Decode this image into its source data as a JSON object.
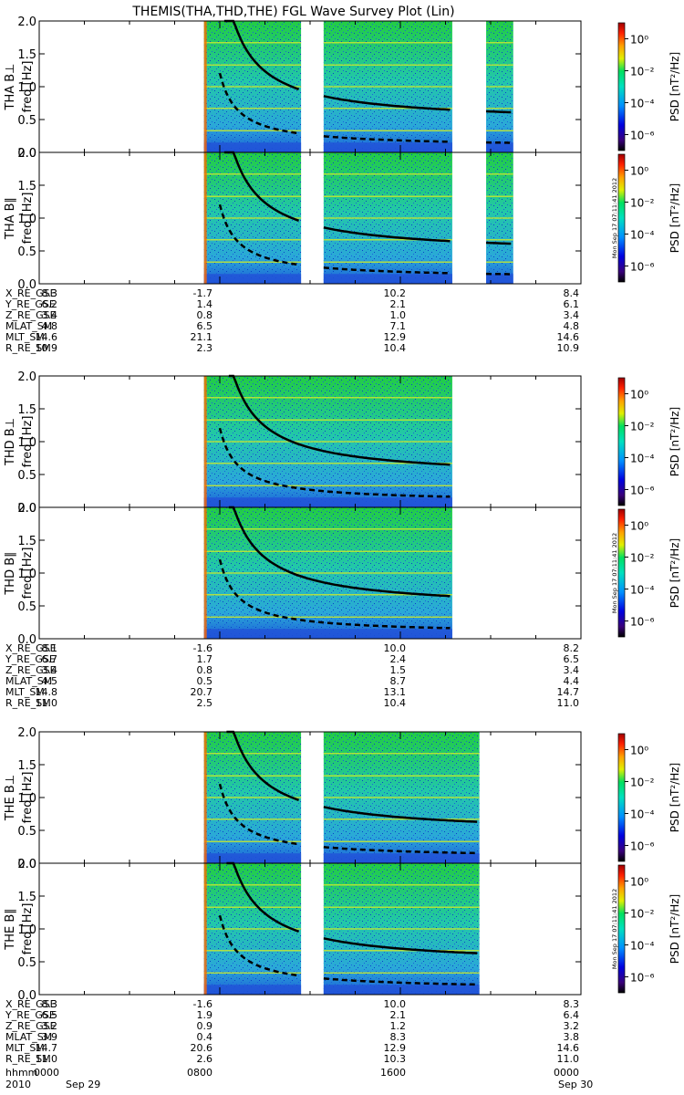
{
  "title": "THEMIS(THA,THD,THE) FGL Wave Survey Plot (Lin)",
  "stamp": "Mon Sep 17 07:11:41 2012",
  "colorbar": {
    "label": "PSD [nT²/Hz]",
    "ticks": [
      "10⁰",
      "10⁻²",
      "10⁻⁴",
      "10⁻⁶"
    ],
    "tick_exponents": [
      0,
      -2,
      -4,
      -6
    ],
    "range_log10": [
      -7,
      1
    ]
  },
  "chart_data": [
    {
      "type": "heatmap",
      "probe": "THA",
      "panels": [
        {
          "ylabel_1": "THA B⊥",
          "ylabel_2": "freq [Hz]",
          "ylim": [
            0,
            2
          ],
          "yticks": [
            "0.0",
            "0.5",
            "1.0",
            "1.5",
            "2.0"
          ],
          "stamp": false
        },
        {
          "ylabel_1": "THA B∥",
          "ylabel_2": "freq [Hz]",
          "ylim": [
            0,
            2
          ],
          "yticks": [
            "0.0",
            "0.5",
            "1.0",
            "1.5",
            "2.0"
          ],
          "stamp": true
        }
      ],
      "data_intervals_hours": [
        [
          7.3,
          11.6
        ],
        [
          12.6,
          18.3
        ],
        [
          19.8,
          21.0
        ]
      ],
      "gyro_line_hours": {
        "solid": [
          [
            8.2,
            11.5
          ],
          [
            12.6,
            18.3
          ],
          [
            19.8,
            21.0
          ]
        ],
        "dashed": [
          [
            8.0,
            11.5
          ],
          [
            12.6,
            18.3
          ],
          [
            19.8,
            21.0
          ]
        ]
      },
      "ephemeris": {
        "labels": [
          "X_RE_GSE",
          "Y_RE_GSE",
          "Z_RE_GSE",
          "MLAT_SM",
          "MLT_SM",
          "R_RE_SM"
        ],
        "columns": [
          [
            "8.3",
            "6.2",
            "3.4",
            "4.8",
            "14.6",
            "10.9"
          ],
          [
            "-1.7",
            "1.4",
            "0.8",
            "6.5",
            "21.1",
            "2.3"
          ],
          [
            "10.2",
            "2.1",
            "1.0",
            "7.1",
            "12.9",
            "10.4"
          ],
          [
            "8.4",
            "6.1",
            "3.4",
            "4.8",
            "14.6",
            "10.9"
          ]
        ]
      }
    },
    {
      "type": "heatmap",
      "probe": "THD",
      "panels": [
        {
          "ylabel_1": "THD B⊥",
          "ylabel_2": "freq [Hz]",
          "ylim": [
            0,
            2
          ],
          "yticks": [
            "0.0",
            "0.5",
            "1.0",
            "1.5",
            "2.0"
          ],
          "stamp": false
        },
        {
          "ylabel_1": "THD B∥",
          "ylabel_2": "freq [Hz]",
          "ylim": [
            0,
            2
          ],
          "yticks": [
            "0.0",
            "0.5",
            "1.0",
            "1.5",
            "2.0"
          ],
          "stamp": true
        }
      ],
      "data_intervals_hours": [
        [
          7.3,
          18.3
        ]
      ],
      "gyro_line_hours": {
        "solid": [
          [
            8.4,
            18.3
          ]
        ],
        "dashed": [
          [
            8.0,
            18.3
          ]
        ]
      },
      "ephemeris": {
        "labels": [
          "X_RE_GSE",
          "Y_RE_GSE",
          "Z_RE_GSE",
          "MLAT_SM",
          "MLT_SM",
          "R_RE_SM"
        ],
        "columns": [
          [
            "8.1",
            "6.7",
            "3.4",
            "4.5",
            "14.8",
            "11.0"
          ],
          [
            "-1.6",
            "1.7",
            "0.8",
            "0.5",
            "20.7",
            "2.5"
          ],
          [
            "10.0",
            "2.4",
            "1.5",
            "8.7",
            "13.1",
            "10.4"
          ],
          [
            "8.2",
            "6.5",
            "3.4",
            "4.4",
            "14.7",
            "11.0"
          ]
        ]
      }
    },
    {
      "type": "heatmap",
      "probe": "THE",
      "panels": [
        {
          "ylabel_1": "THE B⊥",
          "ylabel_2": "freq [Hz]",
          "ylim": [
            0,
            2
          ],
          "yticks": [
            "0.0",
            "0.5",
            "1.0",
            "1.5",
            "2.0"
          ],
          "stamp": false
        },
        {
          "ylabel_1": "THE B∥",
          "ylabel_2": "freq [Hz]",
          "ylim": [
            0,
            2
          ],
          "yticks": [
            "0.0",
            "0.5",
            "1.0",
            "1.5",
            "2.0"
          ],
          "stamp": true
        }
      ],
      "data_intervals_hours": [
        [
          7.3,
          11.6
        ],
        [
          12.6,
          19.5
        ]
      ],
      "gyro_line_hours": {
        "solid": [
          [
            8.3,
            11.5
          ],
          [
            12.6,
            19.5
          ]
        ],
        "dashed": [
          [
            8.0,
            11.5
          ],
          [
            12.6,
            19.5
          ]
        ]
      },
      "ephemeris": {
        "labels": [
          "X_RE_GSE",
          "Y_RE_GSE",
          "Z_RE_GSE",
          "MLAT_SM",
          "MLT_SM",
          "R_RE_SM"
        ],
        "columns": [
          [
            "8.3",
            "6.5",
            "3.2",
            "3.9",
            "14.7",
            "11.0"
          ],
          [
            "-1.6",
            "1.9",
            "0.9",
            "0.4",
            "20.6",
            "2.6"
          ],
          [
            "10.0",
            "2.1",
            "1.2",
            "8.3",
            "12.9",
            "10.3"
          ],
          [
            "8.3",
            "6.4",
            "3.2",
            "3.8",
            "14.6",
            "11.0"
          ]
        ]
      }
    }
  ],
  "time_axis": {
    "range_hours": [
      0,
      24
    ],
    "hhmm_label": "hhmm",
    "hhmm_values": [
      "0000",
      "0800",
      "1600",
      "0000"
    ],
    "year_label": "2010",
    "date_start": "Sep 29",
    "date_end": "Sep 30"
  }
}
